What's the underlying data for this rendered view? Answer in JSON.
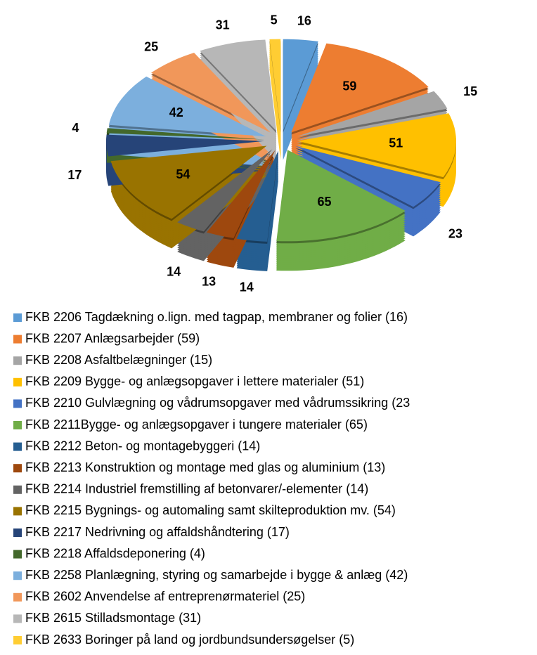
{
  "chart_data": {
    "type": "pie",
    "categories": [
      "FKB 2206 Tagdækning o.lign. med tagpap, membraner og folier (16)",
      "FKB 2207 Anlægsarbejder (59)",
      "FKB 2208 Asfaltbelægninger (15)",
      "FKB 2209 Bygge- og anlægsopgaver i lettere materialer (51)",
      "FKB 2210 Gulvlægning og vådrumsopgaver med vådrumssikring (23",
      "FKB 2211Bygge- og anlægsopgaver i tungere materialer (65)",
      "FKB 2212 Beton- og montagebyggeri (14)",
      "FKB 2213 Konstruktion og montage med glas og aluminium (13)",
      "FKB 2214 Industriel fremstilling af betonvarer/-elementer (14)",
      "FKB 2215 Bygnings- og automaling samt skilteproduktion mv. (54)",
      "FKB 2217 Nedrivning og affaldshåndtering (17)",
      "FKB 2218 Affaldsdeponering (4)",
      "FKB 2258 Planlægning, styring og samarbejde i bygge & anlæg (42)",
      "FKB 2602 Anvendelse af entreprenørmateriel (25)",
      "FKB 2615 Stilladsmontage (31)",
      "FKB 2633 Boringer på land og jordbundsundersøgelser (5)"
    ],
    "values": [
      16,
      59,
      15,
      51,
      23,
      65,
      14,
      13,
      14,
      54,
      17,
      4,
      42,
      25,
      31,
      5
    ],
    "colors": [
      "#5b9bd5",
      "#ed7d31",
      "#a5a5a5",
      "#ffc000",
      "#4472c4",
      "#70ad47",
      "#255e91",
      "#9e480e",
      "#636363",
      "#997300",
      "#264478",
      "#43682b",
      "#7cafdd",
      "#f1975a",
      "#b7b7b7",
      "#ffcd33"
    ]
  }
}
